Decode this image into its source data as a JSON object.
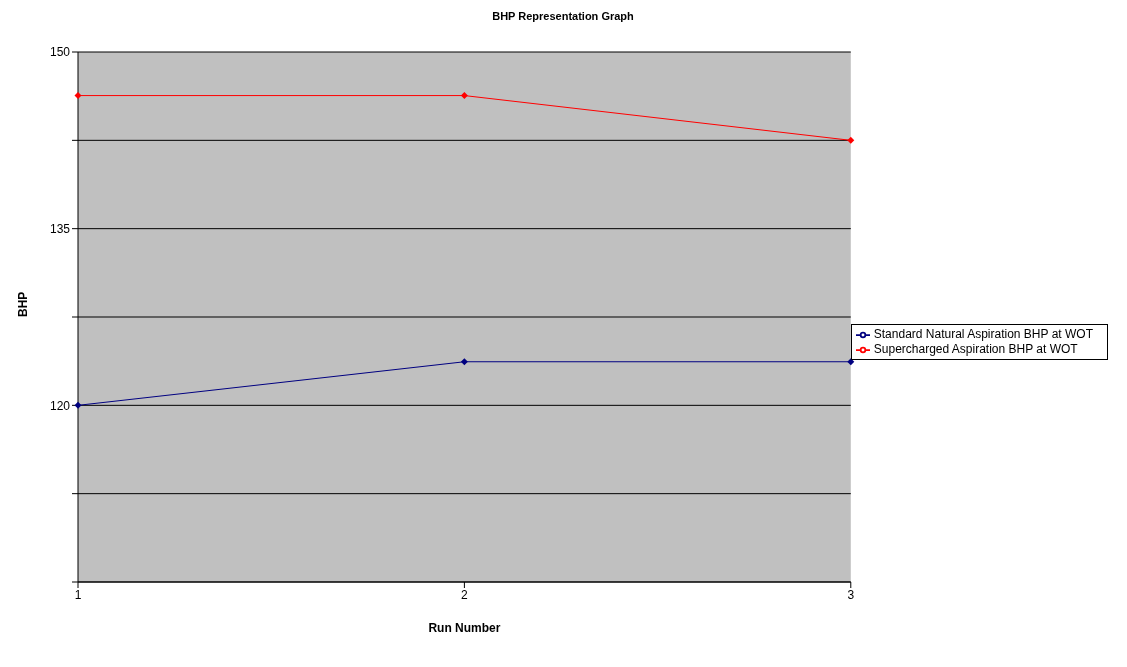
{
  "chart_data": {
    "type": "line",
    "title": "BHP Representation Graph",
    "xlabel": "Run Number",
    "ylabel": "BHP",
    "categories": [
      "1",
      "2",
      "3"
    ],
    "series": [
      {
        "name": "Standard Natural Aspiration BHP at WOT",
        "color": "#000080",
        "values": [
          120,
          123.7,
          123.7
        ]
      },
      {
        "name": "Supercharged Aspiration BHP at WOT",
        "color": "#ff0000",
        "values": [
          146.3,
          146.3,
          142.5
        ]
      }
    ],
    "ylim": [
      105,
      150
    ],
    "yticks": [
      {
        "value": 105,
        "label": null
      },
      {
        "value": 112.5,
        "label": null
      },
      120,
      {
        "value": 127.5,
        "label": null
      },
      135,
      {
        "value": 142.5,
        "label": null
      },
      150
    ],
    "grid": "y",
    "legend": "right",
    "marker": "diamond",
    "line_style": "solid"
  }
}
